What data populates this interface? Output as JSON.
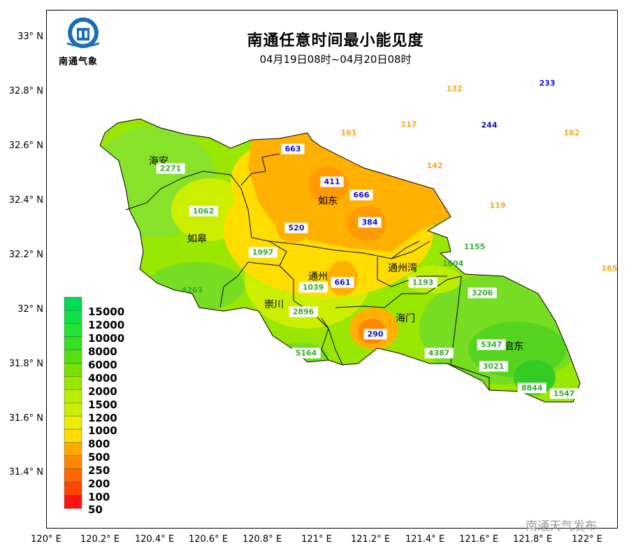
{
  "title": "南通任意时间最小能见度",
  "subtitle": "04月19日08时~04月20日08时",
  "logo_text": "南通气象",
  "watermark": "南通天气发布",
  "latitude_ticks": [
    "33° N",
    "32.8° N",
    "32.6° N",
    "32.4° N",
    "32.2° N",
    "32° N",
    "31.8° N",
    "31.6° N",
    "31.4° N"
  ],
  "longitude_ticks": [
    "120° E",
    "120.2° E",
    "120.4° E",
    "120.6° E",
    "120.8° E",
    "121° E",
    "121.2° E",
    "121.4° E",
    "121.6° E",
    "121.8° E",
    "122° E"
  ],
  "legend": [
    {
      "label": "15000",
      "color": "#00dd55"
    },
    {
      "label": "12000",
      "color": "#11e044"
    },
    {
      "label": "10000",
      "color": "#22e233"
    },
    {
      "label": "8000",
      "color": "#33e022"
    },
    {
      "label": "6000",
      "color": "#55e011"
    },
    {
      "label": "4000",
      "color": "#77e000"
    },
    {
      "label": "2000",
      "color": "#99e600"
    },
    {
      "label": "1500",
      "color": "#bbee00"
    },
    {
      "label": "1200",
      "color": "#ccee00"
    },
    {
      "label": "1000",
      "color": "#eeee00"
    },
    {
      "label": "800",
      "color": "#ffdd00"
    },
    {
      "label": "500",
      "color": "#ffaa00"
    },
    {
      "label": "250",
      "color": "#ff8800"
    },
    {
      "label": "200",
      "color": "#ff6600"
    },
    {
      "label": "100",
      "color": "#ff4400"
    },
    {
      "label": "50",
      "color": "#ff1111"
    }
  ],
  "places": [
    {
      "id": "haian",
      "name": "海安"
    },
    {
      "id": "rugao",
      "name": "如皋"
    },
    {
      "id": "rudong",
      "name": "如东"
    },
    {
      "id": "tongzhou",
      "name": "通州"
    },
    {
      "id": "tongzhouwan",
      "name": "通州湾"
    },
    {
      "id": "chongchuan",
      "name": "崇川"
    },
    {
      "id": "haimen",
      "name": "海门"
    },
    {
      "id": "qidong",
      "name": "启东"
    }
  ],
  "stations": [
    {
      "value": "132",
      "class": "orange",
      "boxed": false
    },
    {
      "value": "233",
      "class": "blue",
      "boxed": false
    },
    {
      "value": "161",
      "class": "orange",
      "boxed": false
    },
    {
      "value": "117",
      "class": "orange",
      "boxed": false
    },
    {
      "value": "244",
      "class": "blue",
      "boxed": false
    },
    {
      "value": "162",
      "class": "orange",
      "boxed": false
    },
    {
      "value": "663",
      "class": "blue",
      "boxed": true
    },
    {
      "value": "142",
      "class": "orange",
      "boxed": false
    },
    {
      "value": "2271",
      "class": "green",
      "boxed": true
    },
    {
      "value": "411",
      "class": "blue",
      "boxed": true
    },
    {
      "value": "666",
      "class": "blue",
      "boxed": true
    },
    {
      "value": "119",
      "class": "orange",
      "boxed": false
    },
    {
      "value": "1062",
      "class": "green",
      "boxed": true
    },
    {
      "value": "520",
      "class": "blue",
      "boxed": true
    },
    {
      "value": "384",
      "class": "blue",
      "boxed": true
    },
    {
      "value": "1155",
      "class": "green",
      "boxed": false
    },
    {
      "value": "1997",
      "class": "green",
      "boxed": true
    },
    {
      "value": "1604",
      "class": "green",
      "boxed": false
    },
    {
      "value": "165",
      "class": "orange",
      "boxed": false
    },
    {
      "value": "4263",
      "class": "green",
      "boxed": false
    },
    {
      "value": "1039",
      "class": "green",
      "boxed": true
    },
    {
      "value": "661",
      "class": "blue",
      "boxed": true
    },
    {
      "value": "1193",
      "class": "green",
      "boxed": true
    },
    {
      "value": "3206",
      "class": "green",
      "boxed": true
    },
    {
      "value": "2896",
      "class": "green",
      "boxed": true
    },
    {
      "value": "290",
      "class": "blue",
      "boxed": true
    },
    {
      "value": "5164",
      "class": "green",
      "boxed": true
    },
    {
      "value": "4387",
      "class": "green",
      "boxed": true
    },
    {
      "value": "5347",
      "class": "green",
      "boxed": true
    },
    {
      "value": "3021",
      "class": "green",
      "boxed": true
    },
    {
      "value": "8844",
      "class": "green",
      "boxed": true
    },
    {
      "value": "1547",
      "class": "green",
      "boxed": true
    }
  ],
  "colors": {
    "orange_text": "#f5a623",
    "blue_text": "#1010d0",
    "green_text": "#3aaa35",
    "logo_blue": "#1a6fb8"
  }
}
